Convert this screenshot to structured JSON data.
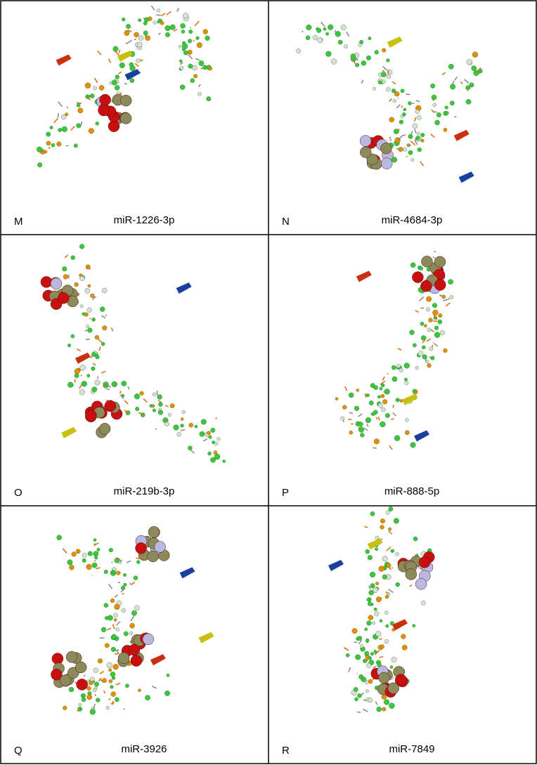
{
  "panels": [
    {
      "letter": "M",
      "label": "miR-1226-3p"
    },
    {
      "letter": "N",
      "label": "miR-4684-3p"
    },
    {
      "letter": "O",
      "label": "miR-219b-3p"
    },
    {
      "letter": "P",
      "label": "miR-888-5p"
    },
    {
      "letter": "Q",
      "label": "miR-3926"
    },
    {
      "letter": "R",
      "label": "miR-7849"
    }
  ]
}
